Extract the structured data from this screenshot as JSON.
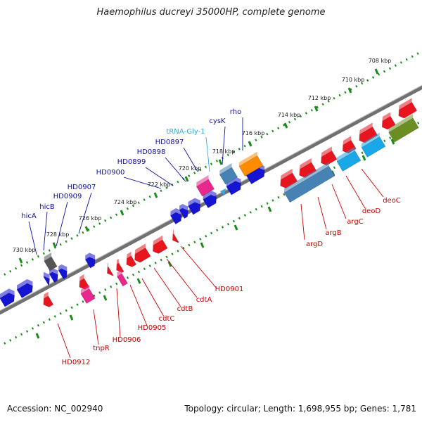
{
  "title": "Haemophilus ducreyi 35000HP, complete genome",
  "accession": "Accession: NC_002940",
  "topology": "Topology: circular; Length: 1,698,955 bp; Genes: 1,781",
  "colors": {
    "forward": "#e8141e",
    "reverse": "#1414d2",
    "rna": "#33aadd",
    "tick": "#1a8c1a",
    "backbone": "#707070",
    "forward_label": "#cc0000",
    "reverse_label": "#1010a0"
  },
  "kbp_ticks": [
    "708 kbp",
    "710 kbp",
    "712 kbp",
    "714 kbp",
    "716 kbp",
    "718 kbp",
    "720 kbp",
    "722 kbp",
    "724 kbp",
    "726 kbp",
    "728 kbp",
    "730 kbp"
  ],
  "reverse_genes": [
    "rho",
    "cysK",
    "tRNA-Gly-1",
    "HD0897",
    "HD0898",
    "HD0899",
    "HD0900",
    "HD0907",
    "HD0909",
    "hicB",
    "hicA"
  ],
  "forward_genes": [
    "deoC",
    "deoD",
    "argC",
    "argB",
    "argD",
    "HD0901",
    "cdtA",
    "cdtB",
    "cdtC",
    "HD0905",
    "HD0906",
    "tnpR",
    "HD0912"
  ]
}
